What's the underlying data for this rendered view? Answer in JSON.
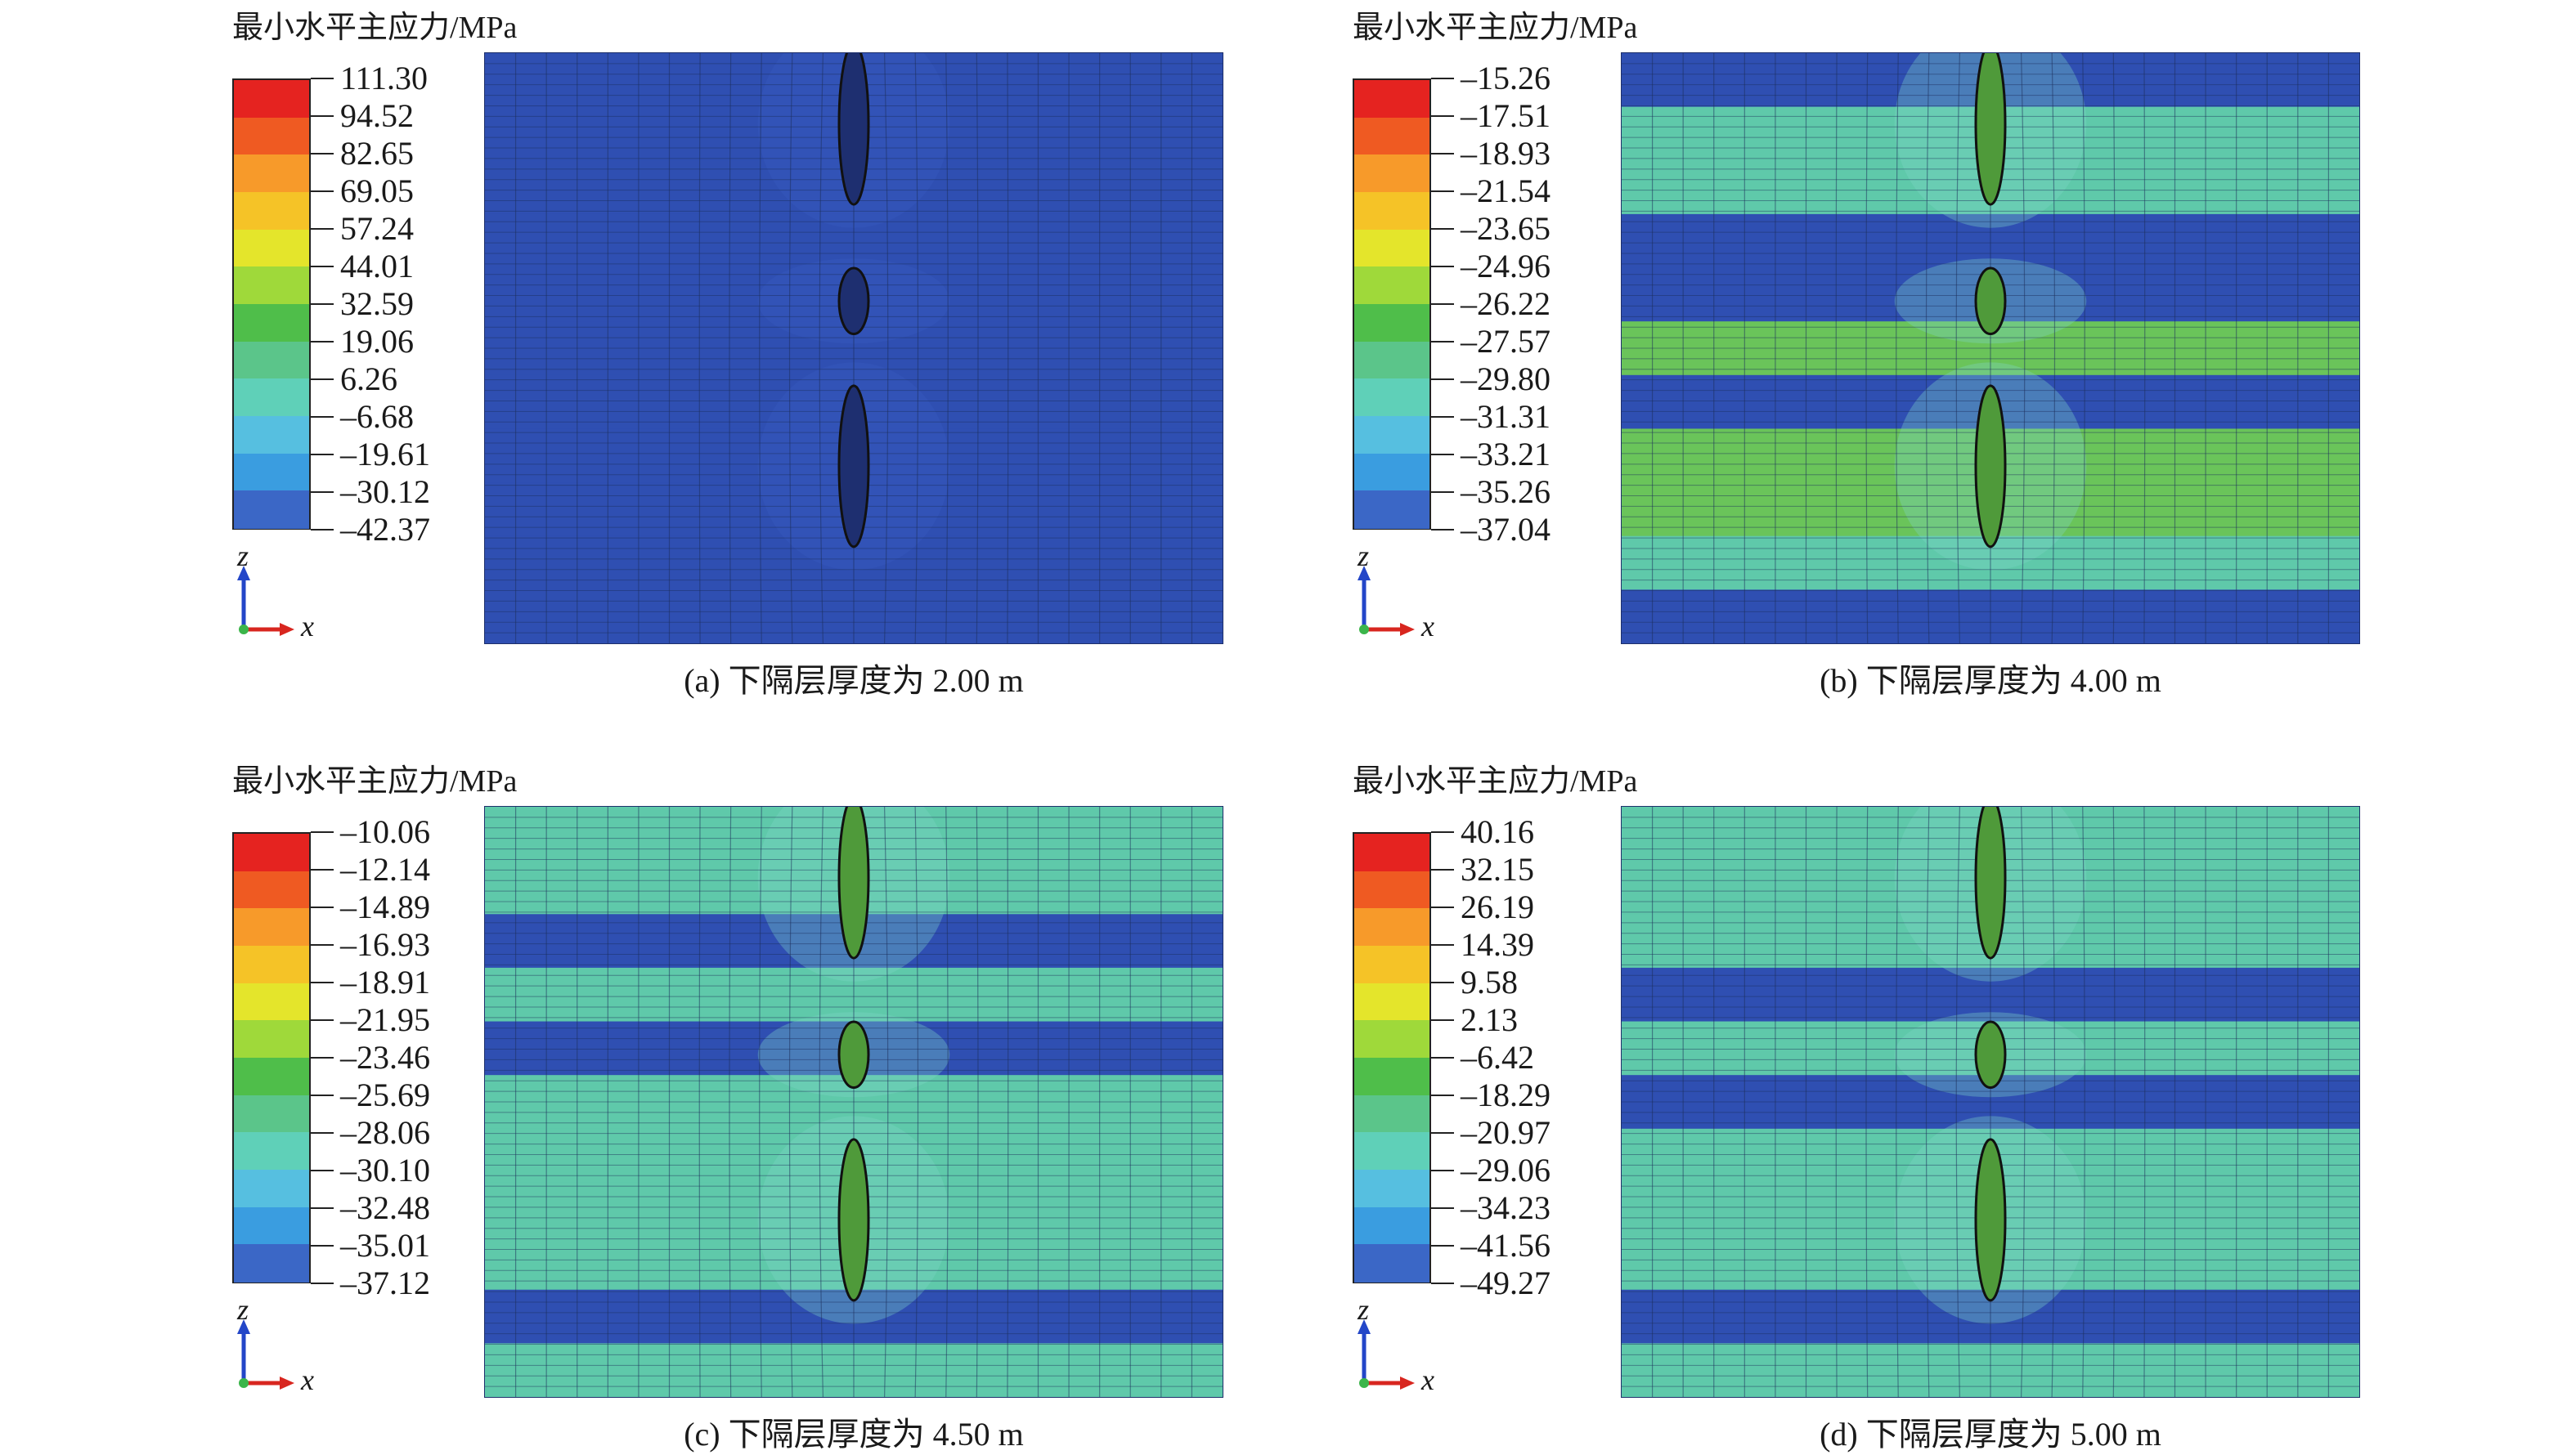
{
  "colors": {
    "scale": [
      "#e52320",
      "#ef5a22",
      "#f79a2a",
      "#f5c327",
      "#e4e52b",
      "#9fd93a",
      "#61c23c",
      "#4fbe4a",
      "#5bc58a",
      "#5fd0b8",
      "#56bfe0",
      "#3a9de0",
      "#3b67c6",
      "#2f4fb2"
    ],
    "deep": "#2f4fb2",
    "teal": "#5fc9aa",
    "green": "#6ac45a"
  },
  "panels": [
    {
      "legend_title": "最小水平主应力/MPa",
      "ticks": [
        "111.30",
        "94.52",
        "82.65",
        "69.05",
        "57.24",
        "44.01",
        "32.59",
        "19.06",
        "6.26",
        "–6.68",
        "–19.61",
        "–30.12",
        "–42.37"
      ],
      "axis_z": "z",
      "axis_x": "x",
      "caption": "(a) 下隔层厚度为 2.00 m",
      "bands": [
        "deep",
        "deep",
        "deep",
        "deep",
        "deep",
        "deep",
        "deep",
        "deep",
        "deep",
        "deep",
        "deep"
      ]
    },
    {
      "legend_title": "最小水平主应力/MPa",
      "ticks": [
        "–15.26",
        "–17.51",
        "–18.93",
        "–21.54",
        "–23.65",
        "–24.96",
        "–26.22",
        "–27.57",
        "–29.80",
        "–31.31",
        "–33.21",
        "–35.26",
        "–37.04"
      ],
      "axis_z": "z",
      "axis_x": "x",
      "caption": "(b) 下隔层厚度为 4.00 m",
      "bands": [
        "deep",
        "teal",
        "teal",
        "deep",
        "deep",
        "green",
        "deep",
        "green",
        "green",
        "teal",
        "deep"
      ]
    },
    {
      "legend_title": "最小水平主应力/MPa",
      "ticks": [
        "–10.06",
        "–12.14",
        "–14.89",
        "–16.93",
        "–18.91",
        "–21.95",
        "–23.46",
        "–25.69",
        "–28.06",
        "–30.10",
        "–32.48",
        "–35.01",
        "–37.12"
      ],
      "axis_z": "z",
      "axis_x": "x",
      "caption": "(c) 下隔层厚度为 4.50 m",
      "bands": [
        "teal",
        "teal",
        "deep",
        "teal",
        "deep",
        "teal",
        "teal",
        "teal",
        "teal",
        "deep",
        "teal"
      ]
    },
    {
      "legend_title": "最小水平主应力/MPa",
      "ticks": [
        "40.16",
        "32.15",
        "26.19",
        "14.39",
        "9.58",
        "2.13",
        "–6.42",
        "–18.29",
        "–20.97",
        "–29.06",
        "–34.23",
        "–41.56",
        "–49.27"
      ],
      "axis_z": "z",
      "axis_x": "x",
      "caption": "(d) 下隔层厚度为 5.00 m",
      "bands": [
        "teal",
        "teal",
        "teal",
        "deep",
        "teal",
        "deep",
        "teal",
        "teal",
        "teal",
        "deep",
        "teal"
      ]
    }
  ]
}
